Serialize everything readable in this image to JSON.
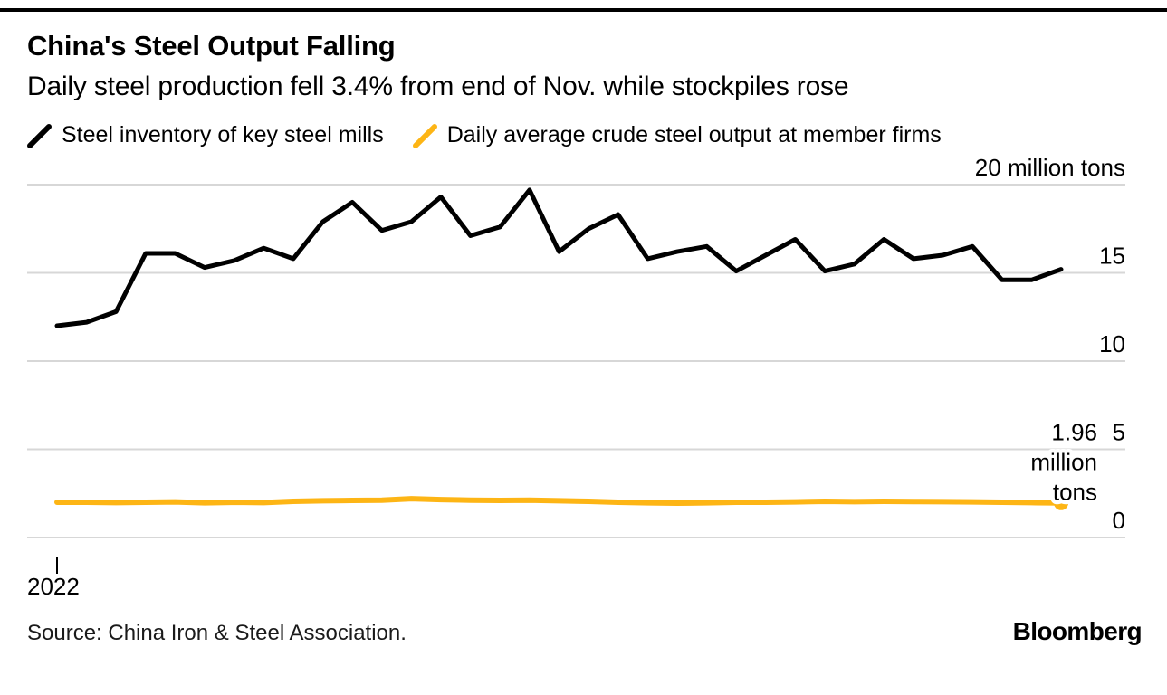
{
  "header": {
    "title": "China's Steel Output Falling",
    "subtitle": "Daily steel production fell 3.4% from end of Nov. while stockpiles rose"
  },
  "legend": [
    {
      "label": "Steel inventory of key steel mills",
      "color": "#000000"
    },
    {
      "label": "Daily average crude steel output at member firms",
      "color": "#fdb515"
    }
  ],
  "footer": {
    "source": "Source: China Iron & Steel Association.",
    "brand": "Bloomberg"
  },
  "chart_data": {
    "type": "line",
    "title": "China's Steel Output Falling",
    "subtitle": "Daily steel production fell 3.4% from end of Nov. while stockpiles rose",
    "unit": "million tons",
    "ylim": [
      0,
      20
    ],
    "grid": "horizontal",
    "legend_position": "top",
    "x_axis": {
      "tick_label": "2022"
    },
    "yticks": [
      {
        "value": 0,
        "label": "0"
      },
      {
        "value": 5,
        "label": "5"
      },
      {
        "value": 10,
        "label": "10"
      },
      {
        "value": 15,
        "label": "15"
      },
      {
        "value": 20,
        "label": "20 million tons"
      }
    ],
    "annotation": {
      "lines": [
        "1.96",
        "million",
        "tons"
      ],
      "value": 1.96,
      "series": "Daily average crude steel output at member firms"
    },
    "series": [
      {
        "name": "Steel inventory of key steel mills",
        "color": "#000000",
        "stroke_width": 5,
        "end_dot": false,
        "values": [
          12.0,
          12.2,
          12.8,
          16.1,
          16.1,
          15.3,
          15.7,
          16.4,
          15.8,
          17.9,
          19.0,
          17.4,
          17.9,
          19.3,
          17.1,
          17.6,
          19.7,
          16.2,
          17.5,
          18.3,
          15.8,
          16.2,
          16.5,
          15.1,
          16.0,
          16.9,
          15.1,
          15.5,
          16.9,
          15.8,
          16.0,
          16.5,
          14.6,
          14.6,
          15.2
        ]
      },
      {
        "name": "Daily average crude steel output at member firms",
        "color": "#fdb515",
        "stroke_width": 6,
        "end_dot": true,
        "values": [
          2.0,
          2.0,
          1.98,
          2.0,
          2.02,
          1.97,
          2.0,
          1.98,
          2.05,
          2.08,
          2.1,
          2.12,
          2.2,
          2.15,
          2.12,
          2.1,
          2.12,
          2.08,
          2.05,
          2.0,
          1.97,
          1.95,
          1.97,
          2.0,
          2.0,
          2.02,
          2.05,
          2.03,
          2.05,
          2.04,
          2.03,
          2.02,
          2.0,
          1.98,
          1.96
        ]
      }
    ]
  }
}
